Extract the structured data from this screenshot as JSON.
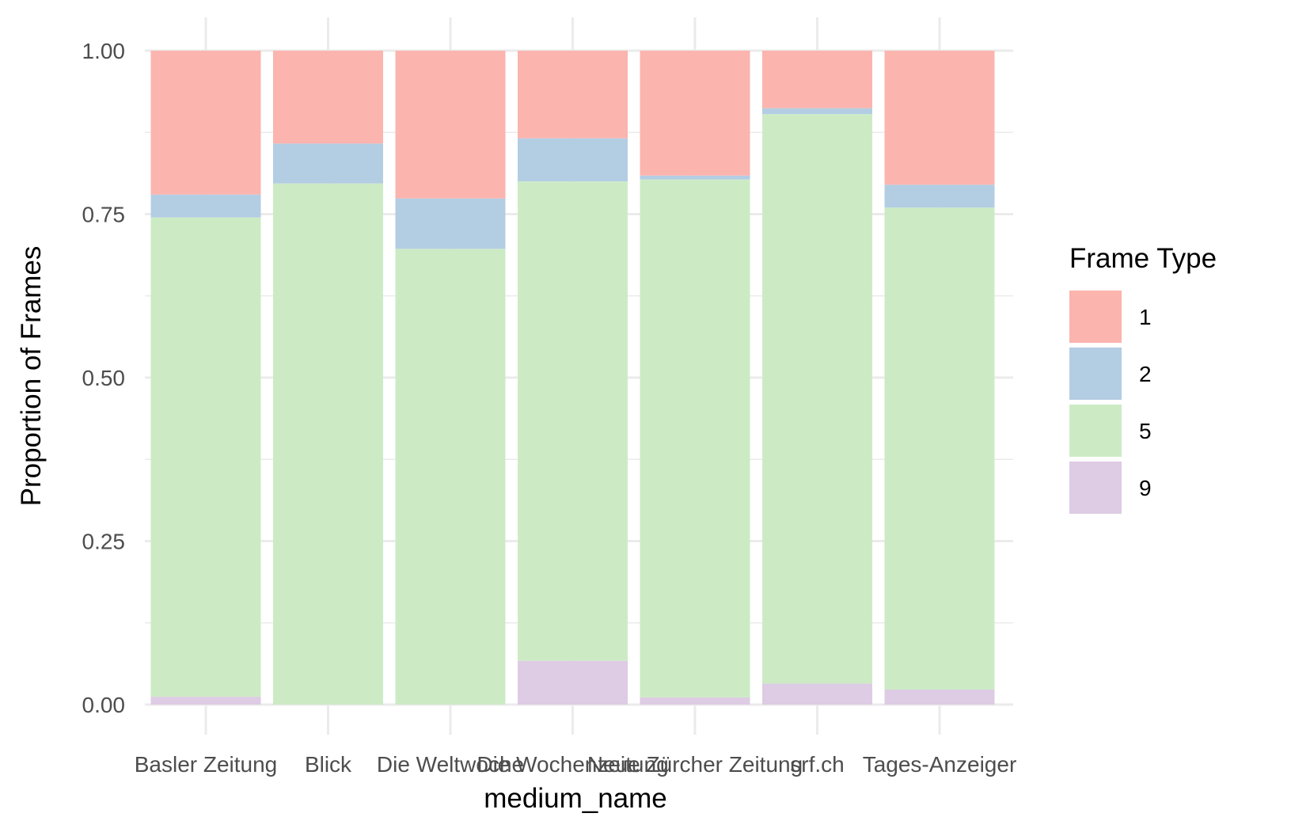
{
  "chart_data": {
    "type": "bar",
    "stacked": true,
    "xlabel": "medium_name",
    "ylabel": "Proportion of Frames",
    "ylim": [
      0,
      1
    ],
    "y_ticks": [
      "0.00",
      "0.25",
      "0.50",
      "0.75",
      "1.00"
    ],
    "y_tick_values": [
      0,
      0.25,
      0.5,
      0.75,
      1.0
    ],
    "grid": true,
    "legend": {
      "title": "Frame Type",
      "placement": "right"
    },
    "categories": [
      "Basler Zeitung",
      "Blick",
      "Die Weltwoche",
      "Die Wochenzeitung",
      "Neue Zürcher Zeitung",
      "srf.ch",
      "Tages-Anzeiger"
    ],
    "series": [
      {
        "name": "9",
        "color": "#DECBE4",
        "values": [
          0.012,
          0.0,
          0.0,
          0.067,
          0.011,
          0.032,
          0.023
        ]
      },
      {
        "name": "5",
        "color": "#CCEBC5",
        "values": [
          0.733,
          0.797,
          0.697,
          0.733,
          0.792,
          0.871,
          0.737
        ]
      },
      {
        "name": "2",
        "color": "#B3CDE3",
        "values": [
          0.035,
          0.061,
          0.077,
          0.066,
          0.006,
          0.009,
          0.035
        ]
      },
      {
        "name": "1",
        "color": "#FBB4AE",
        "values": [
          0.22,
          0.142,
          0.226,
          0.134,
          0.191,
          0.088,
          0.205
        ]
      }
    ],
    "legend_order": [
      "1",
      "2",
      "5",
      "9"
    ]
  }
}
